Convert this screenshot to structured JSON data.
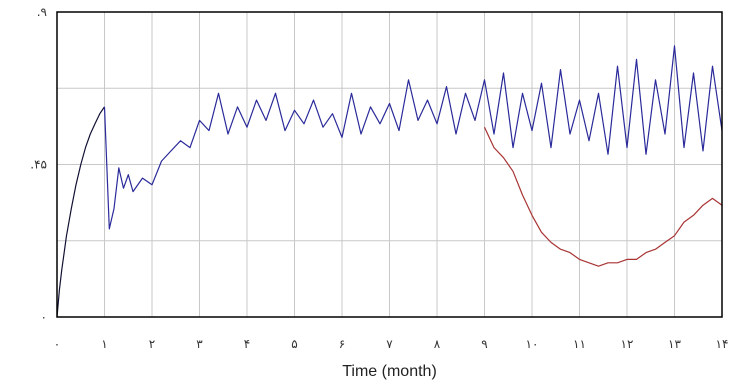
{
  "chart_data": {
    "type": "line",
    "title": "",
    "xlabel": "Time (month)",
    "ylabel": "",
    "xlim": [
      0,
      14
    ],
    "ylim": [
      0,
      0.9
    ],
    "grid": true,
    "legend": "none",
    "x_tick_labels": [
      "۰",
      "۱",
      "۲",
      "۳",
      "۴",
      "۵",
      "۶",
      "۷",
      "۸",
      "۹",
      "۱۰",
      "۱۱",
      "۱۲",
      "۱۳",
      "۱۴"
    ],
    "y_ticks": [
      {
        "value": 0,
        "label": "۰"
      },
      {
        "value": 0.45,
        "label": ".۴۵"
      },
      {
        "value": 0.9,
        "label": ".۹"
      }
    ],
    "colors": {
      "startup": "#111133",
      "series_a": "#2a2a9a",
      "series_b": "#a83434",
      "grid": "#c8c8c8",
      "frame": "#000000"
    },
    "series": [
      {
        "color": "#111133",
        "x": [
          0,
          0.05,
          0.1,
          0.2,
          0.3,
          0.4,
          0.5,
          0.6,
          0.7,
          0.8,
          0.9,
          1.0
        ],
        "y": [
          0,
          0.08,
          0.14,
          0.24,
          0.32,
          0.39,
          0.45,
          0.5,
          0.54,
          0.57,
          0.6,
          0.62
        ]
      },
      {
        "color": "#2a2a9a",
        "x": [
          1.0,
          1.1,
          1.2,
          1.3,
          1.4,
          1.5,
          1.6,
          1.8,
          2.0,
          2.2,
          2.4,
          2.6,
          2.8,
          3.0,
          3.2,
          3.4,
          3.6,
          3.8,
          4.0,
          4.2,
          4.4,
          4.6,
          4.8,
          5.0,
          5.2,
          5.4,
          5.6,
          5.8,
          6.0,
          6.2,
          6.4,
          6.6,
          6.8,
          7.0,
          7.2,
          7.4,
          7.6,
          7.8,
          8.0,
          8.2,
          8.4,
          8.6,
          8.8,
          9.0,
          9.2,
          9.4,
          9.6,
          9.8,
          10.0,
          10.2,
          10.4,
          10.6,
          10.8,
          11.0,
          11.2,
          11.4,
          11.6,
          11.8,
          12.0,
          12.2,
          12.4,
          12.6,
          12.8,
          13.0,
          13.2,
          13.4,
          13.6,
          13.8,
          14.0
        ],
        "y": [
          0.62,
          0.26,
          0.32,
          0.44,
          0.38,
          0.42,
          0.37,
          0.41,
          0.39,
          0.46,
          0.49,
          0.52,
          0.5,
          0.58,
          0.55,
          0.66,
          0.54,
          0.62,
          0.56,
          0.64,
          0.58,
          0.66,
          0.55,
          0.61,
          0.57,
          0.64,
          0.56,
          0.6,
          0.53,
          0.66,
          0.54,
          0.62,
          0.57,
          0.63,
          0.55,
          0.7,
          0.58,
          0.64,
          0.57,
          0.68,
          0.54,
          0.66,
          0.58,
          0.7,
          0.54,
          0.72,
          0.5,
          0.66,
          0.55,
          0.69,
          0.5,
          0.73,
          0.54,
          0.64,
          0.52,
          0.66,
          0.48,
          0.74,
          0.5,
          0.76,
          0.48,
          0.7,
          0.54,
          0.8,
          0.5,
          0.72,
          0.49,
          0.74,
          0.55
        ]
      },
      {
        "color": "#a83434",
        "x": [
          9.0,
          9.2,
          9.4,
          9.6,
          9.8,
          10.0,
          10.2,
          10.4,
          10.6,
          10.8,
          11.0,
          11.2,
          11.4,
          11.6,
          11.8,
          12.0,
          12.2,
          12.4,
          12.6,
          12.8,
          13.0,
          13.2,
          13.4,
          13.6,
          13.8,
          14.0
        ],
        "y": [
          0.56,
          0.5,
          0.47,
          0.43,
          0.36,
          0.3,
          0.25,
          0.22,
          0.2,
          0.19,
          0.17,
          0.16,
          0.15,
          0.16,
          0.16,
          0.17,
          0.17,
          0.19,
          0.2,
          0.22,
          0.24,
          0.28,
          0.3,
          0.33,
          0.35,
          0.33
        ]
      }
    ]
  }
}
